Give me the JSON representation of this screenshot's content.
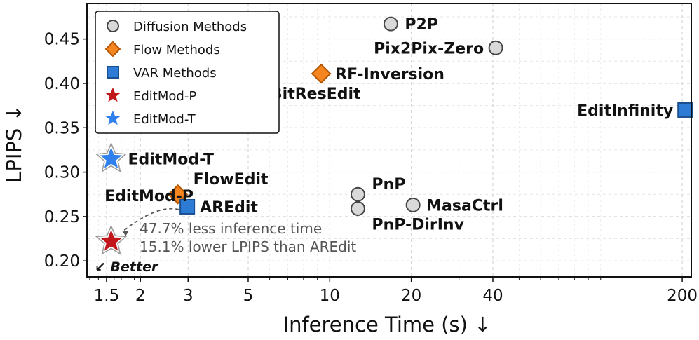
{
  "chart_data": {
    "type": "scatter",
    "xlabel": "Inference Time (s) ↓",
    "ylabel": "LPIPS ↓",
    "x_scale": "log",
    "xlim": [
      1.27,
      216
    ],
    "ylim": [
      0.182,
      0.49
    ],
    "grid": true,
    "legend_placement": "top-left",
    "x_ticks": [
      {
        "value": 1.5,
        "label": "1.5"
      },
      {
        "value": 2,
        "label": "2"
      },
      {
        "value": 3,
        "label": "3"
      },
      {
        "value": 5,
        "label": "5"
      },
      {
        "value": 10,
        "label": "10"
      },
      {
        "value": 20,
        "label": "20"
      },
      {
        "value": 40,
        "label": "40"
      },
      {
        "value": 200,
        "label": "200"
      }
    ],
    "y_ticks": [
      {
        "value": 0.2,
        "label": "0.20"
      },
      {
        "value": 0.25,
        "label": "0.25"
      },
      {
        "value": 0.3,
        "label": "0.30"
      },
      {
        "value": 0.35,
        "label": "0.35"
      },
      {
        "value": 0.4,
        "label": "0.40"
      },
      {
        "value": 0.45,
        "label": "0.45"
      }
    ],
    "legend": [
      {
        "label": "Diffusion Methods",
        "marker": "circle",
        "fill": "#d9d9d9",
        "stroke": "#444444"
      },
      {
        "label": "Flow Methods",
        "marker": "diamond",
        "fill": "#f5861f",
        "stroke": "#b35400"
      },
      {
        "label": "VAR Methods",
        "marker": "square",
        "fill": "#2e7bd6",
        "stroke": "#1a4f8f"
      },
      {
        "label": "EditMod-P",
        "marker": "star",
        "fill": "#c0161c",
        "stroke": "#c0161c"
      },
      {
        "label": "EditMod-T",
        "marker": "star",
        "fill": "#2f80ed",
        "stroke": "#2f80ed"
      }
    ],
    "series": [
      {
        "name": "Diffusion Methods",
        "marker": "circle",
        "points": [
          {
            "label": "P2P",
            "x": 16.8,
            "y": 0.467
          },
          {
            "label": "Pix2Pix-Zero",
            "x": 41.0,
            "y": 0.44
          },
          {
            "label": "PnP",
            "x": 12.7,
            "y": 0.275
          },
          {
            "label": "PnP-DirInv",
            "x": 12.7,
            "y": 0.259
          },
          {
            "label": "MasaCtrl",
            "x": 20.3,
            "y": 0.263
          }
        ]
      },
      {
        "name": "Flow Methods",
        "marker": "diamond",
        "points": [
          {
            "label": "RF-Inversion",
            "x": 9.3,
            "y": 0.411
          },
          {
            "label": "FlowEdit",
            "x": 2.75,
            "y": 0.275
          }
        ]
      },
      {
        "name": "VAR Methods",
        "marker": "square",
        "points": [
          {
            "label": "BitResEdit",
            "x": 5.4,
            "y": 0.389
          },
          {
            "label": "EditInfinity",
            "x": 205.0,
            "y": 0.37
          },
          {
            "label": "AREdit",
            "x": 2.98,
            "y": 0.261
          }
        ]
      },
      {
        "name": "EditMod-P",
        "marker": "star",
        "points": [
          {
            "label": "EditMod-P",
            "x": 1.56,
            "y": 0.222
          }
        ]
      },
      {
        "name": "EditMod-T",
        "marker": "star",
        "points": [
          {
            "label": "EditMod-T",
            "x": 1.56,
            "y": 0.315
          }
        ]
      }
    ],
    "annotations": [
      {
        "text": "47.7% less inference time"
      },
      {
        "text": "15.1% lower LPIPS than AREdit"
      },
      {
        "text": "↙ Better"
      }
    ]
  }
}
